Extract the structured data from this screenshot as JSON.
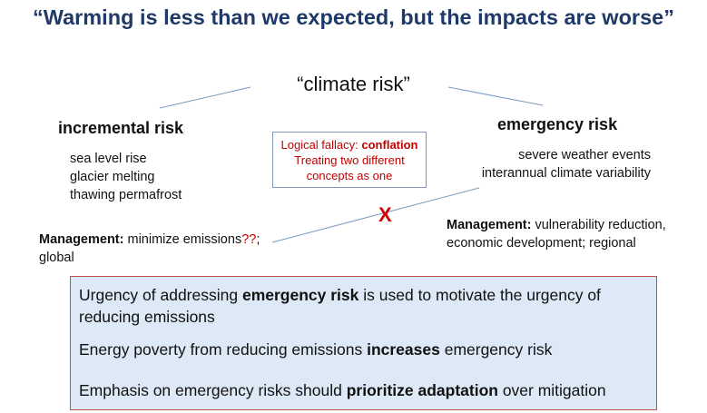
{
  "title": "“Warming is less than we expected, but the impacts are worse”",
  "center_label": "“climate risk”",
  "left": {
    "heading": "incremental risk",
    "items": [
      "sea level rise",
      "glacier melting",
      "thawing permafrost"
    ],
    "management_label": "Management:",
    "management_text": " minimize emissions",
    "management_marks": "??",
    "management_rest": ";",
    "management_line2": "global"
  },
  "right": {
    "heading": "emergency risk",
    "items": [
      "severe weather events",
      "interannual climate variability"
    ],
    "management_label": "Management:",
    "management_text": " vulnerability reduction,",
    "management_line2": "economic development; regional"
  },
  "fallacy": {
    "prefix": "Logical fallacy: ",
    "keyword": "conflation",
    "line2": "Treating two different",
    "line3": "concepts as one"
  },
  "x_mark": "X",
  "bottom": {
    "p1_a": "Urgency of addressing ",
    "p1_b": "emergency risk",
    "p1_c": " is used to motivate the urgency of",
    "p1_line2": "reducing emissions",
    "p2_a": "Energy poverty from reducing emissions ",
    "p2_b": "increases",
    "p2_c": " emergency risk",
    "p3_a": "Emphasis on emergency risks should ",
    "p3_b": "prioritize adaptation",
    "p3_c": " over mitigation"
  },
  "colors": {
    "title": "#1f3a68",
    "accent_red": "#c00000",
    "line_blue": "#7a9ac0",
    "box_fill": "#dde9f6"
  }
}
